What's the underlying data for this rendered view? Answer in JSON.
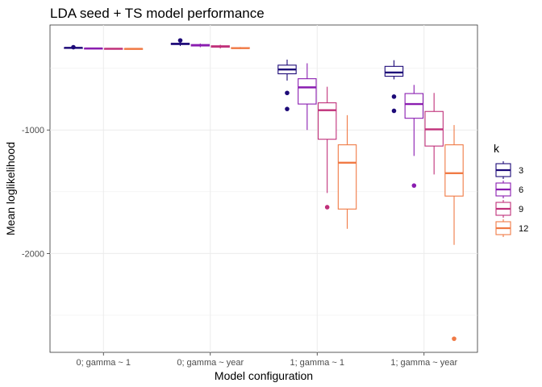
{
  "chart_data": {
    "type": "boxplot",
    "title": "LDA seed + TS model performance",
    "xlabel": "Model configuration",
    "ylabel": "Mean loglikelihood",
    "ylim": [
      -2800,
      -150
    ],
    "yticks": [
      -1000,
      -2000
    ],
    "ytick_labels": [
      "-1000",
      "-2000"
    ],
    "grid": true,
    "legend_position": "right",
    "legend_title": "k",
    "categories": [
      "0; gamma ~ 1",
      "0; gamma ~ year",
      "1; gamma ~ 1",
      "1; gamma ~ year"
    ],
    "series": [
      {
        "name": "3",
        "color": "#1d0a78",
        "boxes": [
          {
            "low": -340,
            "q1": -337,
            "median": -335,
            "q3": -333,
            "high": -330,
            "outliers": [
              -330
            ]
          },
          {
            "low": -320,
            "q1": -308,
            "median": -303,
            "q3": -298,
            "high": -290,
            "outliers": [
              -275
            ]
          },
          {
            "low": -600,
            "q1": -545,
            "median": -510,
            "q3": -475,
            "high": -430,
            "outliers": [
              -700,
              -830
            ]
          },
          {
            "low": -590,
            "q1": -565,
            "median": -535,
            "q3": -485,
            "high": -435,
            "outliers": [
              -730,
              -845
            ]
          }
        ]
      },
      {
        "name": "6",
        "color": "#8a1db0",
        "boxes": [
          {
            "low": -345,
            "q1": -342,
            "median": -340,
            "q3": -338,
            "high": -336,
            "outliers": []
          },
          {
            "low": -330,
            "q1": -320,
            "median": -315,
            "q3": -308,
            "high": -300,
            "outliers": []
          },
          {
            "low": -1000,
            "q1": -790,
            "median": -655,
            "q3": -585,
            "high": -460,
            "outliers": []
          },
          {
            "low": -1210,
            "q1": -905,
            "median": -790,
            "q3": -705,
            "high": -635,
            "outliers": [
              -1450
            ]
          }
        ]
      },
      {
        "name": "9",
        "color": "#c0307a",
        "boxes": [
          {
            "low": -347,
            "q1": -344,
            "median": -342,
            "q3": -340,
            "high": -338,
            "outliers": []
          },
          {
            "low": -340,
            "q1": -330,
            "median": -325,
            "q3": -318,
            "high": -310,
            "outliers": []
          },
          {
            "low": -1510,
            "q1": -1075,
            "median": -840,
            "q3": -780,
            "high": -650,
            "outliers": [
              -1625
            ]
          },
          {
            "low": -1360,
            "q1": -1130,
            "median": -995,
            "q3": -850,
            "high": -700,
            "outliers": []
          }
        ]
      },
      {
        "name": "12",
        "color": "#f07a45",
        "boxes": [
          {
            "low": -348,
            "q1": -345,
            "median": -343,
            "q3": -341,
            "high": -339,
            "outliers": []
          },
          {
            "low": -345,
            "q1": -340,
            "median": -337,
            "q3": -333,
            "high": -328,
            "outliers": []
          },
          {
            "low": -1800,
            "q1": -1640,
            "median": -1265,
            "q3": -1120,
            "high": -880,
            "outliers": []
          },
          {
            "low": -1930,
            "q1": -1535,
            "median": -1350,
            "q3": -1120,
            "high": -960,
            "outliers": [
              -2690
            ]
          }
        ]
      }
    ]
  }
}
